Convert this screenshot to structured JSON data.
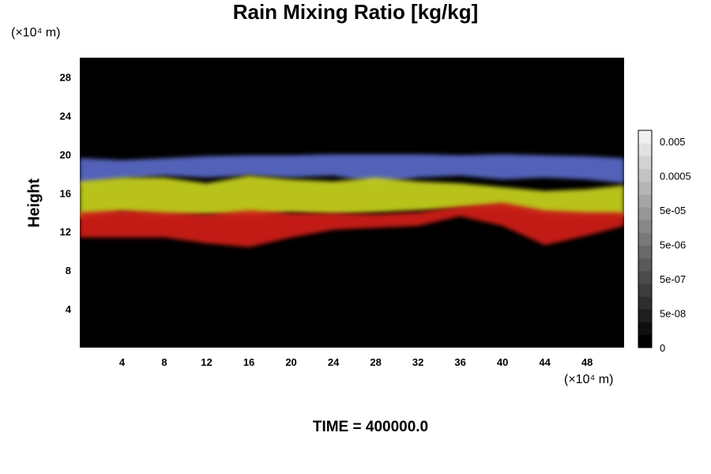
{
  "chart_data": {
    "type": "heatmap",
    "title": "Rain Mixing Ratio [kg/kg]",
    "ylabel": "Height",
    "xlabel": "",
    "x_unit": "(×10⁴ m)",
    "y_unit": "(×10⁴ m)",
    "xlim": [
      0,
      51.5
    ],
    "ylim": [
      0,
      30
    ],
    "x_ticks": [
      4,
      8,
      12,
      16,
      20,
      24,
      28,
      32,
      36,
      40,
      44,
      48
    ],
    "y_ticks": [
      4,
      8,
      12,
      16,
      20,
      24,
      28
    ],
    "background_color": "#000000",
    "layers": [
      {
        "name": "blue",
        "color": "#5a6ac8",
        "x": [
          0,
          4,
          8,
          12,
          16,
          20,
          24,
          28,
          32,
          36,
          40,
          44,
          48,
          51.5
        ],
        "top": [
          19.6,
          19.4,
          19.6,
          19.8,
          19.9,
          19.9,
          20.0,
          20.0,
          20.0,
          19.9,
          20.0,
          19.9,
          19.8,
          19.6
        ],
        "bottom": [
          16.8,
          17.4,
          17.8,
          17.6,
          17.8,
          17.6,
          17.8,
          17.0,
          17.6,
          17.8,
          17.4,
          17.6,
          17.4,
          17.0
        ]
      },
      {
        "name": "yellow",
        "color": "#c8d21e",
        "x": [
          0,
          4,
          8,
          12,
          16,
          20,
          24,
          28,
          32,
          36,
          40,
          44,
          48,
          51.5
        ],
        "top": [
          17.2,
          17.6,
          17.6,
          17.0,
          17.8,
          17.4,
          17.2,
          17.6,
          17.2,
          17.0,
          16.6,
          16.2,
          16.4,
          16.8
        ],
        "bottom": [
          13.4,
          14.0,
          13.6,
          13.8,
          13.6,
          14.0,
          13.8,
          14.0,
          14.2,
          14.4,
          14.6,
          13.8,
          13.6,
          13.6
        ]
      },
      {
        "name": "red",
        "color": "#d21e14",
        "x": [
          0,
          4,
          8,
          12,
          16,
          20,
          24,
          28,
          32,
          36,
          40,
          44,
          48,
          51.5
        ],
        "top": [
          14.0,
          14.2,
          14.0,
          13.8,
          14.2,
          13.9,
          13.9,
          13.8,
          14.0,
          14.6,
          15.0,
          14.2,
          14.0,
          14.0
        ],
        "bottom": [
          11.4,
          11.4,
          11.4,
          10.8,
          10.4,
          11.4,
          12.2,
          12.4,
          12.6,
          13.6,
          12.6,
          10.6,
          11.6,
          12.6
        ]
      }
    ],
    "colorbar": {
      "labels": [
        "0.005",
        "0.0005",
        "5e-05",
        "5e-06",
        "5e-07",
        "5e-08",
        "0"
      ],
      "n_levels": 17,
      "color_low": "#000000",
      "color_high": "#f0f0f0"
    }
  },
  "footer": "TIME = 400000.0"
}
